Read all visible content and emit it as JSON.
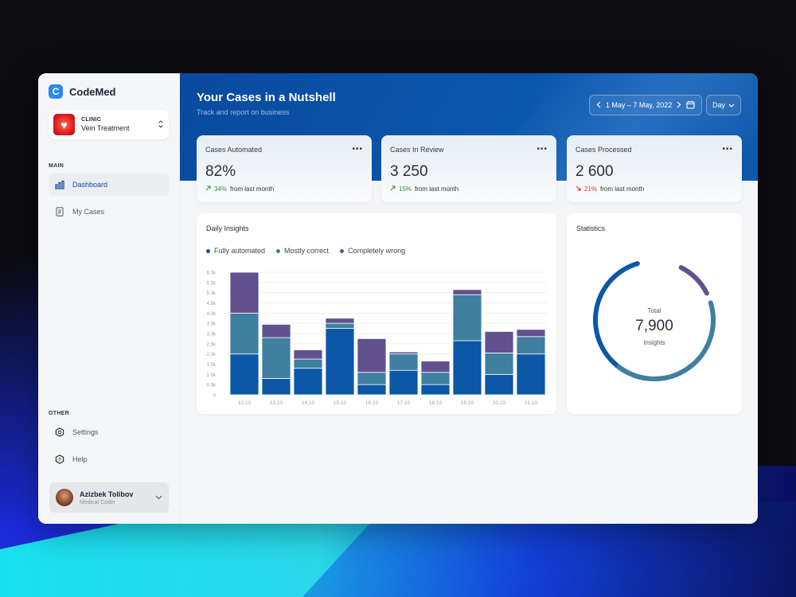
{
  "app": {
    "logo_letter": "C",
    "name": "CodeMed"
  },
  "clinic": {
    "label": "CLINIC",
    "name": "Vein Treatment"
  },
  "sidebar": {
    "main_label": "MAIN",
    "main_items": [
      {
        "label": "Dashboard",
        "active": true
      },
      {
        "label": "My Cases",
        "active": false
      }
    ],
    "other_label": "OTHER",
    "other_items": [
      {
        "label": "Settings"
      },
      {
        "label": "Help"
      }
    ]
  },
  "user": {
    "name": "Azizbek Tolibov",
    "role": "Medical Coder"
  },
  "header": {
    "title": "Your Cases in a Nutshell",
    "subtitle": "Track and report on business",
    "date_range": "1 May – 7 May, 2022",
    "period": "Day"
  },
  "stats": [
    {
      "label": "Cases Automated",
      "value": "82%",
      "delta": "34%",
      "delta_text": "from last month",
      "trend": "up"
    },
    {
      "label": "Cases In Review",
      "value": "3 250",
      "delta": "15%",
      "delta_text": "from last month",
      "trend": "up"
    },
    {
      "label": "Cases Processed",
      "value": "2 600",
      "delta": "21%",
      "delta_text": "from last month",
      "trend": "down"
    }
  ],
  "daily_insights": {
    "title": "Daily Insights"
  },
  "statistics": {
    "title": "Statistics",
    "total_label": "Total",
    "total_value": "7,900",
    "total_sub": "Insights",
    "segments": [
      {
        "name": "Fully automated",
        "fraction": 0.44,
        "color": "#0c57a6"
      },
      {
        "name": "Mostly correct",
        "fraction": 0.4,
        "color": "#3f7fa0"
      },
      {
        "name": "Completely wrong",
        "fraction": 0.1,
        "color": "#62518f"
      }
    ]
  },
  "colors": {
    "fully_automated": "#0c57a6",
    "mostly_correct": "#3f7fa0",
    "completely_wrong": "#62518f"
  },
  "chart_data": {
    "type": "bar",
    "stacked": true,
    "categories": [
      "12.10",
      "13.10",
      "14.10",
      "15.10",
      "16.10",
      "17.10",
      "18.10",
      "19.10",
      "20.10",
      "21.10"
    ],
    "y_ticks": [
      "0",
      "0.5k",
      "1.0k",
      "1.5k",
      "2.0k",
      "2.5k",
      "3.0k",
      "3.5k",
      "4.0k",
      "4.5k",
      "5.0k",
      "5.5k",
      "6.0k"
    ],
    "ylim": [
      0,
      6000
    ],
    "series": [
      {
        "name": "Fully automated",
        "color": "#0c57a6",
        "values": [
          2000,
          800,
          1300,
          3250,
          500,
          1200,
          500,
          2650,
          1000,
          2000
        ]
      },
      {
        "name": "Mostly correct",
        "color": "#3f7fa0",
        "values": [
          2000,
          2000,
          450,
          250,
          600,
          800,
          600,
          2250,
          1050,
          850
        ]
      },
      {
        "name": "Completely wrong",
        "color": "#62518f",
        "values": [
          2000,
          650,
          450,
          250,
          1650,
          100,
          550,
          250,
          1050,
          350
        ]
      }
    ],
    "legend_position": "top-left",
    "grid": true
  }
}
